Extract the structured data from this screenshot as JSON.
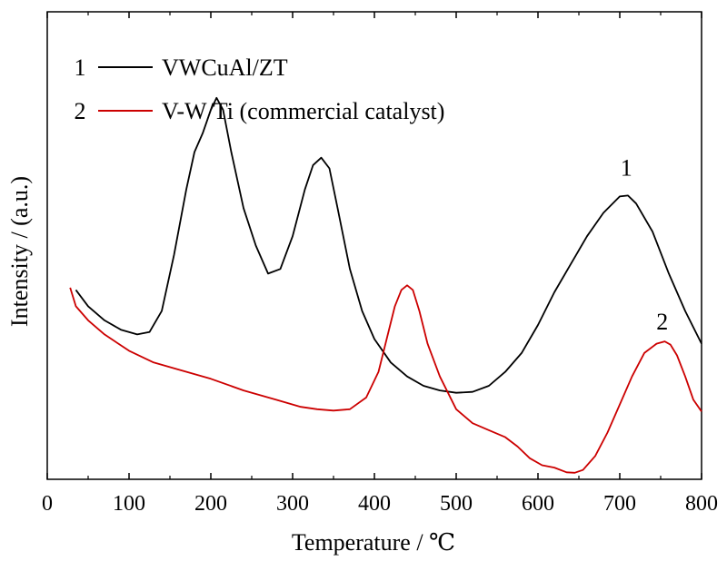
{
  "chart_data": {
    "type": "line",
    "title": "",
    "xlabel": "Temperature / ℃",
    "ylabel": "Intensity / (a.u.)",
    "xlim": [
      0,
      800
    ],
    "ylim": [
      0,
      1
    ],
    "x_ticks": [
      0,
      100,
      200,
      300,
      400,
      500,
      600,
      700,
      800
    ],
    "x_tick_labels": [
      "0",
      "100",
      "200",
      "300",
      "400",
      "500",
      "600",
      "700",
      "800"
    ],
    "y_ticks_shown": false,
    "grid": false,
    "legend": {
      "placement": "top-left",
      "entries": [
        {
          "number": "1",
          "label": "VWCuAl/ZT",
          "color": "#000000"
        },
        {
          "number": "2",
          "label": "V-W/Ti (commercial catalyst)",
          "color": "#cc0000"
        }
      ]
    },
    "series": [
      {
        "curve_label": "1",
        "color": "#000000",
        "x": [
          35,
          50,
          70,
          90,
          110,
          125,
          140,
          155,
          170,
          180,
          190,
          200,
          207,
          215,
          225,
          240,
          255,
          270,
          285,
          300,
          315,
          325,
          335,
          345,
          355,
          370,
          385,
          400,
          420,
          440,
          460,
          480,
          500,
          520,
          540,
          560,
          580,
          600,
          620,
          640,
          660,
          680,
          700,
          710,
          720,
          740,
          760,
          780,
          800
        ],
        "y": [
          0.405,
          0.37,
          0.34,
          0.32,
          0.31,
          0.315,
          0.36,
          0.48,
          0.62,
          0.7,
          0.74,
          0.79,
          0.816,
          0.79,
          0.7,
          0.58,
          0.5,
          0.44,
          0.45,
          0.52,
          0.62,
          0.672,
          0.688,
          0.665,
          0.58,
          0.45,
          0.36,
          0.3,
          0.25,
          0.22,
          0.2,
          0.19,
          0.185,
          0.187,
          0.2,
          0.23,
          0.27,
          0.33,
          0.4,
          0.46,
          0.52,
          0.57,
          0.605,
          0.607,
          0.59,
          0.53,
          0.44,
          0.36,
          0.29
        ]
      },
      {
        "curve_label": "2",
        "color": "#cc0000",
        "x": [
          28,
          35,
          50,
          70,
          100,
          130,
          160,
          200,
          240,
          280,
          310,
          330,
          350,
          370,
          390,
          405,
          415,
          425,
          433,
          440,
          447,
          455,
          465,
          480,
          500,
          520,
          540,
          560,
          575,
          590,
          605,
          620,
          635,
          645,
          655,
          670,
          685,
          700,
          715,
          730,
          745,
          755,
          762,
          770,
          780,
          790,
          800
        ],
        "y": [
          0.41,
          0.37,
          0.34,
          0.31,
          0.275,
          0.25,
          0.235,
          0.215,
          0.19,
          0.17,
          0.155,
          0.15,
          0.147,
          0.15,
          0.175,
          0.23,
          0.3,
          0.37,
          0.405,
          0.415,
          0.405,
          0.36,
          0.29,
          0.22,
          0.15,
          0.12,
          0.105,
          0.09,
          0.07,
          0.045,
          0.03,
          0.025,
          0.015,
          0.014,
          0.02,
          0.05,
          0.1,
          0.16,
          0.22,
          0.27,
          0.29,
          0.295,
          0.288,
          0.265,
          0.22,
          0.17,
          0.145
        ]
      }
    ],
    "annotations": [
      {
        "text": "1",
        "x": 708,
        "y": 0.65
      },
      {
        "text": "2",
        "x": 752,
        "y": 0.32
      }
    ]
  }
}
